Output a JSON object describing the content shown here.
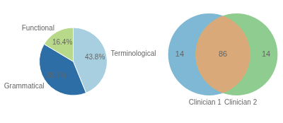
{
  "chart_data": [
    {
      "type": "pie",
      "categories": [
        "Terminological",
        "Grammatical",
        "Functional"
      ],
      "values": [
        43.8,
        39.7,
        16.4
      ],
      "value_labels": [
        "43.8%",
        "39.7%",
        "16.4%"
      ],
      "colors": [
        "#a8cfe0",
        "#2e6ea6",
        "#b8d98a"
      ],
      "data_labels": true
    },
    {
      "type": "venn",
      "series": [
        {
          "name": "Clinician 1",
          "color": "#7eb8d4",
          "values": [
            14
          ]
        },
        {
          "name": "Clinician 2",
          "color": "#8fcc8f",
          "values": [
            14
          ]
        }
      ],
      "intersection": {
        "value": 86,
        "color": "#d9a97a"
      },
      "data_labels": true
    }
  ]
}
